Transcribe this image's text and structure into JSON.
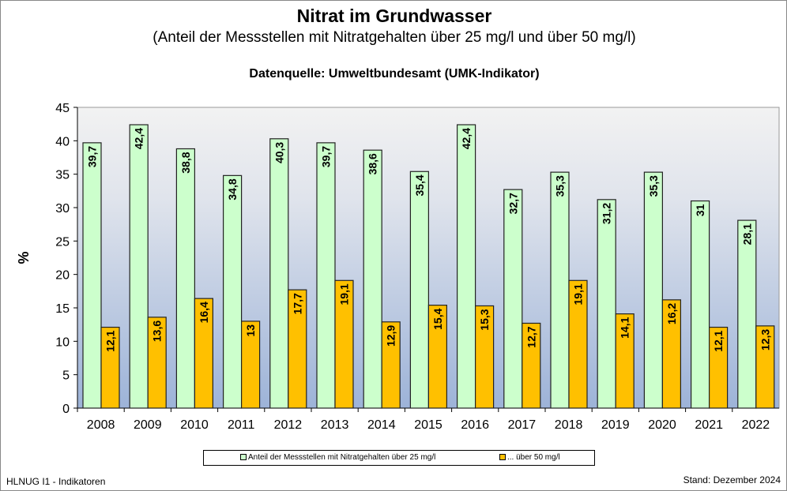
{
  "chart_data": {
    "type": "bar",
    "title": "Nitrat im Grundwasser",
    "subtitle": "(Anteil der Messstellen mit Nitratgehalten über 25 mg/l und über 50 mg/l)",
    "source": "Datenquelle: Umweltbundesamt (UMK-Indikator)",
    "ylabel": "%",
    "xlabel": "",
    "ylim": [
      0,
      45
    ],
    "yticks": [
      0,
      5,
      10,
      15,
      20,
      25,
      30,
      35,
      40,
      45
    ],
    "categories": [
      "2008",
      "2009",
      "2010",
      "2011",
      "2012",
      "2013",
      "2014",
      "2015",
      "2016",
      "2017",
      "2018",
      "2019",
      "2020",
      "2021",
      "2022"
    ],
    "series": [
      {
        "name": "Anteil der Messstellen mit Nitratgehalten über 25 mg/l",
        "color": "#ccffcc",
        "values": [
          39.7,
          42.4,
          38.8,
          34.8,
          40.3,
          39.7,
          38.6,
          35.4,
          42.4,
          32.7,
          35.3,
          31.2,
          35.3,
          31,
          28.1
        ],
        "labels": [
          "39,7",
          "42,4",
          "38,8",
          "34,8",
          "40,3",
          "39,7",
          "38,6",
          "35,4",
          "42,4",
          "32,7",
          "35,3",
          "31,2",
          "35,3",
          "31",
          "28,1"
        ]
      },
      {
        "name": "... über 50 mg/l",
        "color": "#ffc000",
        "values": [
          12.1,
          13.6,
          16.4,
          13,
          17.7,
          19.1,
          12.9,
          15.4,
          15.3,
          12.7,
          19.1,
          14.1,
          16.2,
          12.1,
          12.3
        ],
        "labels": [
          "12,1",
          "13,6",
          "16,4",
          "13",
          "17,7",
          "19,1",
          "12,9",
          "15,4",
          "15,3",
          "12,7",
          "19,1",
          "14,1",
          "16,2",
          "12,1",
          "12,3"
        ]
      }
    ],
    "legend": "bottom",
    "grid": false
  },
  "footer": {
    "left": "HLNUG I1 - Indikatoren",
    "right": "Stand: Dezember 2024"
  }
}
